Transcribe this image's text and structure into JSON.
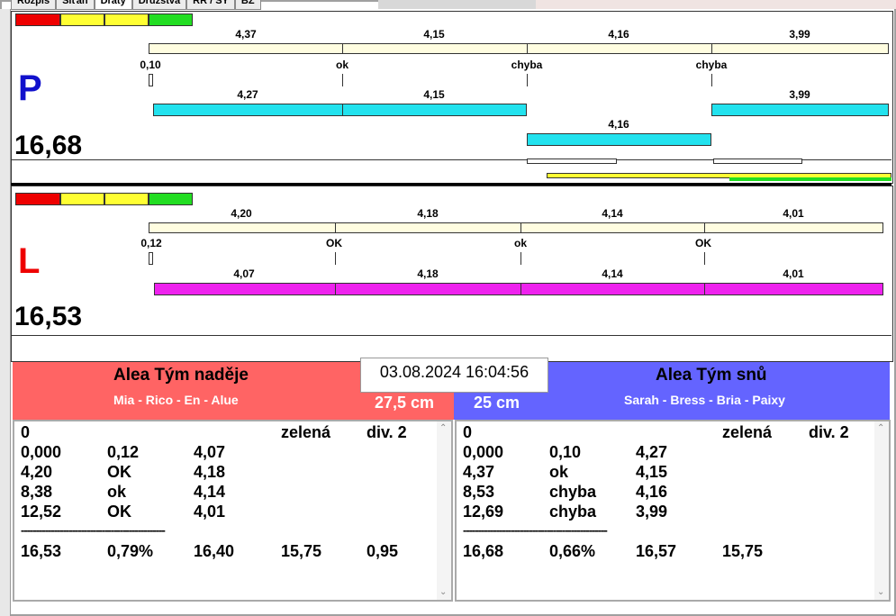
{
  "tabs": [
    "Rozpis",
    "Síťaň",
    "Draty",
    "Družstva",
    "RR / SY",
    "BZ"
  ],
  "colors": {
    "red": "#ee0000",
    "yellow": "#ffff33",
    "green": "#22dd22",
    "cream": "#fffde0",
    "cyan": "#22e2ee",
    "magenta": "#ee22ee",
    "team_left": "#ff6464",
    "team_right": "#6464ff"
  },
  "top": {
    "letter": "P",
    "letter_color": "#1111cc",
    "score": "16,68",
    "row1_values": [
      "4,37",
      "4,15",
      "4,16",
      "3,99"
    ],
    "checks": [
      "0,10",
      "ok",
      "chyba",
      "chyba"
    ],
    "row2_values": [
      "4,27",
      "4,15",
      "",
      "3,99"
    ],
    "row3_values": [
      "4,16"
    ]
  },
  "bottom": {
    "letter": "L",
    "letter_color": "#ee0000",
    "score": "16,53",
    "row1_values": [
      "4,20",
      "4,18",
      "4,14",
      "4,01"
    ],
    "checks": [
      "0,12",
      "OK",
      "ok",
      "OK"
    ],
    "row2_values": [
      "4,07",
      "4,18",
      "4,14",
      "4,01"
    ]
  },
  "datetime": "03.08.2024 16:04:56",
  "team_left": {
    "name": "Alea Tým naděje",
    "members": "Mia - Rico - En - Alue",
    "distance": "27,5 cm"
  },
  "team_right": {
    "name": "Alea Tým snů",
    "members": "Sarah - Bress - Bria - Paixy",
    "distance": "25 cm"
  },
  "list_left": {
    "header": [
      "0",
      "",
      "",
      "zelená",
      "div. 2"
    ],
    "rows": [
      [
        "0,000",
        "0,12",
        "4,07"
      ],
      [
        "4,20",
        "OK",
        "4,18"
      ],
      [
        "8,38",
        "ok",
        "4,14"
      ],
      [
        "12,52",
        "OK",
        "4,01"
      ]
    ],
    "dash": "------------------------------------------------",
    "total": [
      "16,53",
      "0,79%",
      "16,40",
      "15,75",
      "0,95"
    ]
  },
  "list_right": {
    "header": [
      "0",
      "",
      "",
      "zelená",
      "div. 2"
    ],
    "rows": [
      [
        "0,000",
        "0,10",
        "4,27"
      ],
      [
        "4,37",
        "ok",
        "4,15"
      ],
      [
        "8,53",
        "chyba",
        "4,16"
      ],
      [
        "12,69",
        "chyba",
        "3,99"
      ]
    ],
    "dash": "------------------------------------------------",
    "total": [
      "16,68",
      "0,66%",
      "16,57",
      "15,75",
      ""
    ]
  }
}
